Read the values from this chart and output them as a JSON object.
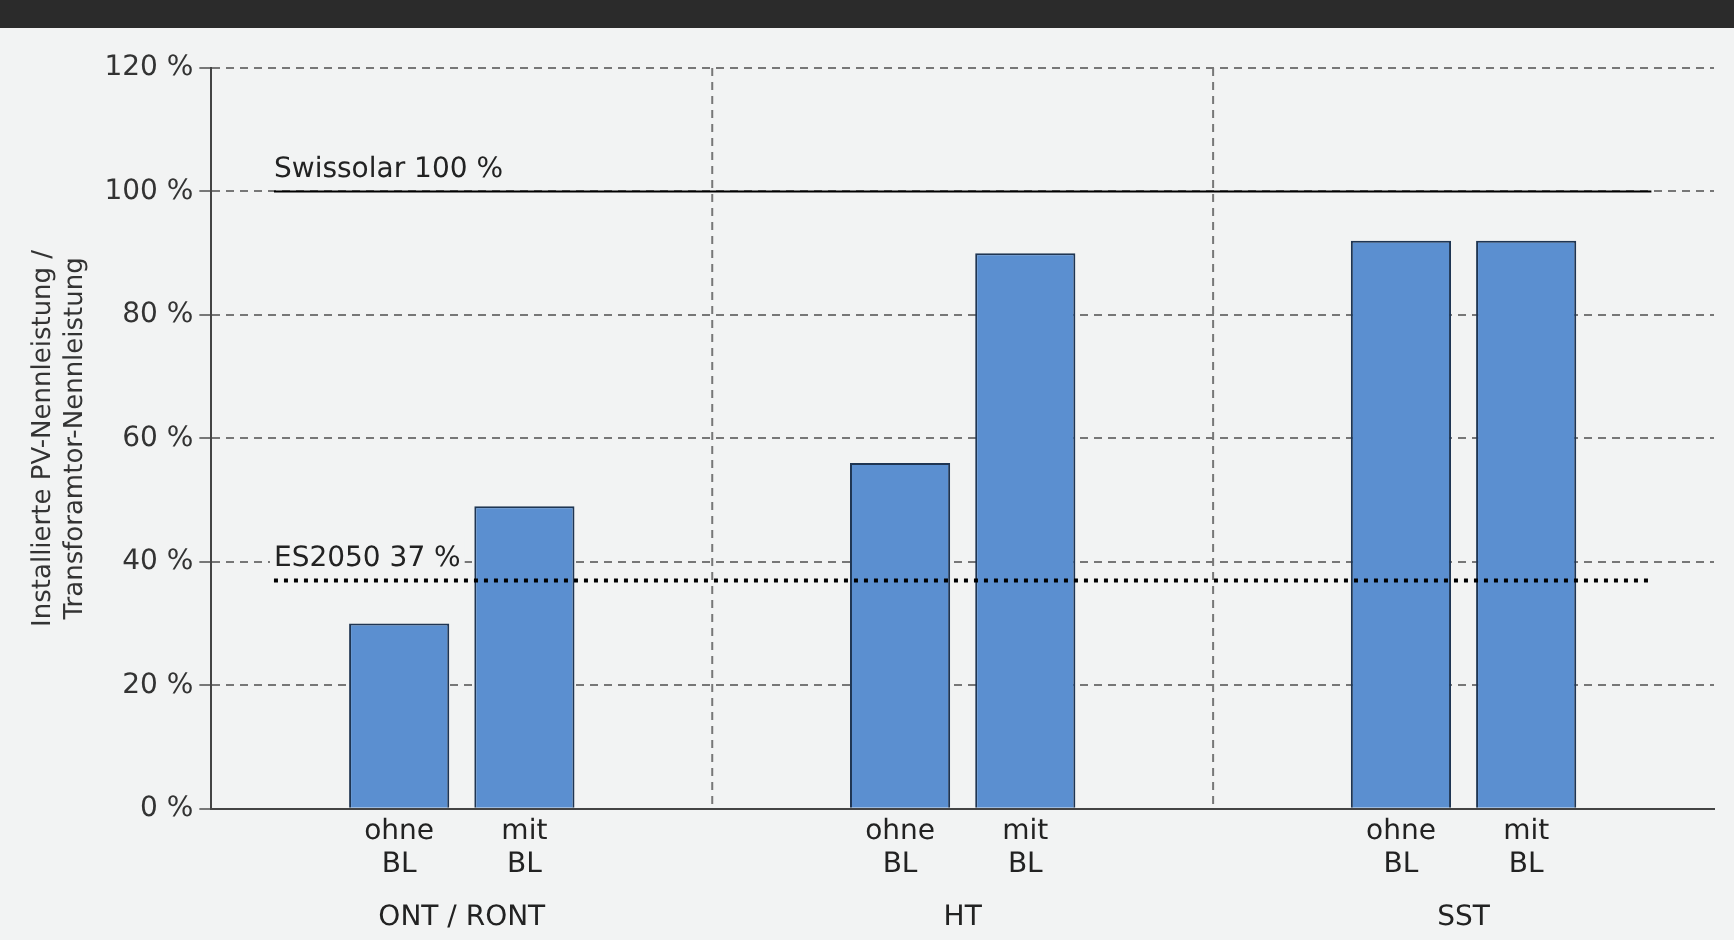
{
  "chart_data": {
    "type": "bar",
    "ylabel": "Installierte PV-Nennleistung / Transforamtor-Nennleistung",
    "categories": [
      null,
      "ohne BL",
      "mit BL",
      null,
      null,
      "ohne BL",
      "mit BL",
      null,
      null,
      "ohne BL",
      "mit BL",
      null
    ],
    "values": [
      null,
      30,
      49,
      null,
      null,
      56,
      90,
      null,
      null,
      92,
      92,
      null
    ],
    "color": "#5b8fd0",
    "ylim": [
      0,
      120
    ],
    "yticks": [
      {
        "value": 0,
        "label": "0 %"
      },
      {
        "value": 20,
        "label": "20 %"
      },
      {
        "value": 40,
        "label": "40 %"
      },
      {
        "value": 60,
        "label": "60 %"
      },
      {
        "value": 80,
        "label": "80 %"
      },
      {
        "value": 100,
        "label": "100 %"
      },
      {
        "value": 120,
        "label": "120 %"
      }
    ],
    "grid": true,
    "ref_lines": [
      {
        "axis": "y",
        "value": 100,
        "label": "Swissolar 100 %",
        "line_style": "solid"
      },
      {
        "axis": "y",
        "value": 37,
        "label": "ES2050 37 %",
        "line_style": "dotted"
      }
    ],
    "annotations": [
      "ONT / RONT",
      "HT",
      "SST"
    ]
  }
}
